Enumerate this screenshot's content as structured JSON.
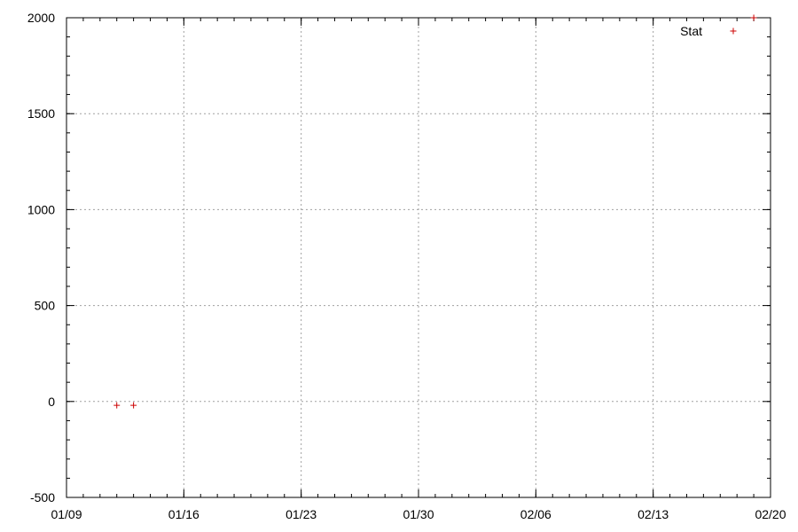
{
  "chart_data": {
    "type": "scatter",
    "title": "",
    "xlabel": "",
    "ylabel": "",
    "x_axis": {
      "type": "date",
      "range": [
        "2015-01-09",
        "2015-02-20"
      ],
      "ticks": [
        {
          "date": "2015-01-09",
          "label": "01/09"
        },
        {
          "date": "2015-01-16",
          "label": "01/16"
        },
        {
          "date": "2015-01-23",
          "label": "01/23"
        },
        {
          "date": "2015-01-30",
          "label": "01/30"
        },
        {
          "date": "2015-02-06",
          "label": "02/06"
        },
        {
          "date": "2015-02-13",
          "label": "02/13"
        },
        {
          "date": "2015-02-20",
          "label": "02/20"
        }
      ],
      "minor_ticks_per_major": 7
    },
    "y_axis": {
      "range": [
        -500,
        2000
      ],
      "ticks": [
        -500,
        0,
        500,
        1000,
        1500,
        2000
      ],
      "labels": [
        "-500",
        "0",
        "500",
        "1000",
        "1500",
        "2000"
      ],
      "minor_ticks_per_major": 5
    },
    "grid": true,
    "legend": {
      "position": "top-right"
    },
    "series": [
      {
        "name": "Stat",
        "color": "#cc0000",
        "marker": "plus",
        "points": [
          {
            "x": "2015-01-12",
            "y": -20
          },
          {
            "x": "2015-01-13",
            "y": -20
          },
          {
            "x": "2015-02-19",
            "y": 2000
          }
        ]
      }
    ]
  }
}
